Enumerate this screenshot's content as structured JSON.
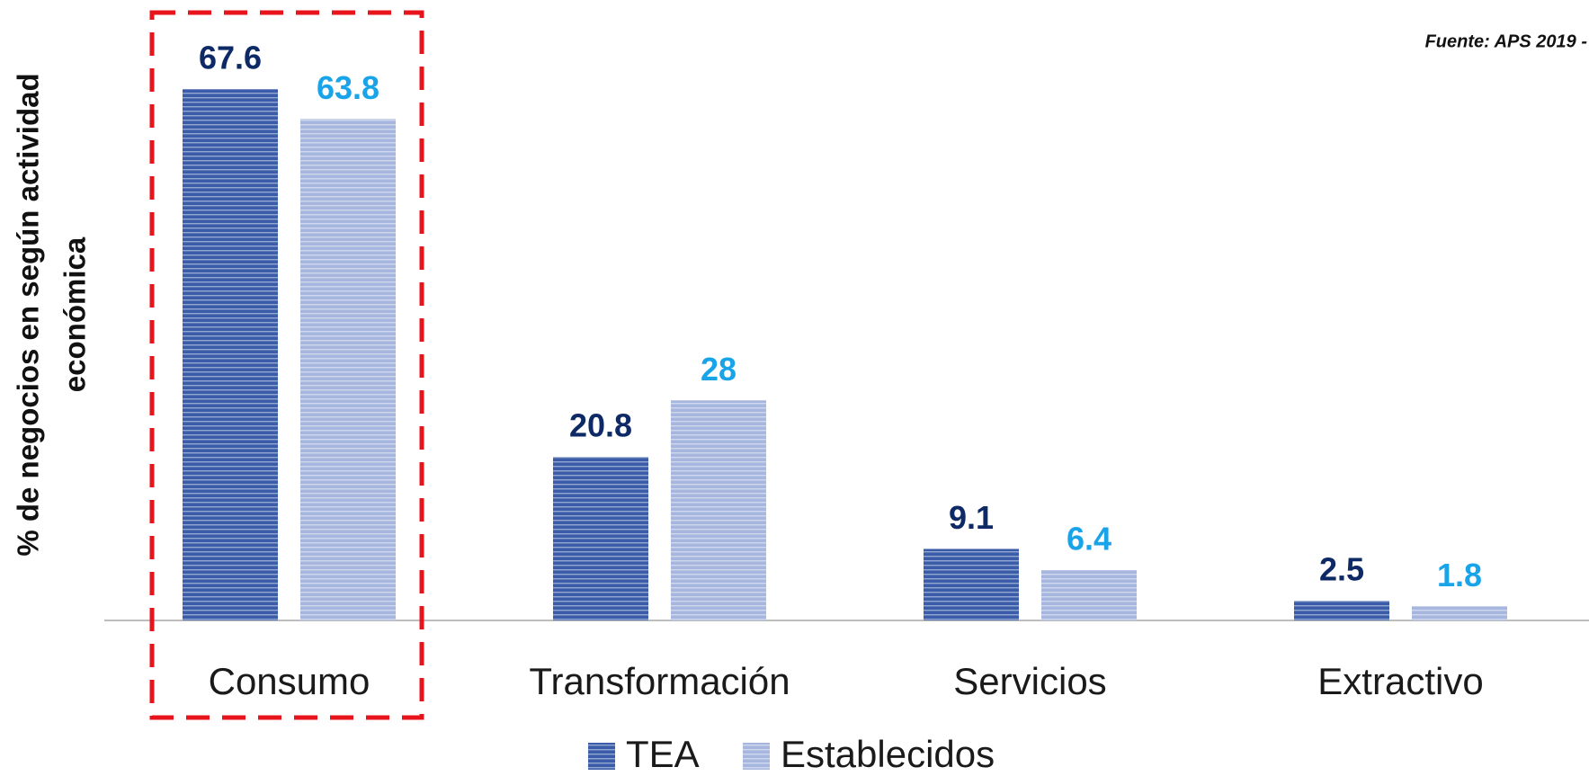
{
  "chart_data": {
    "type": "bar",
    "y_label": [
      "% de negocios en según actividad",
      "económica"
    ],
    "source": "Fuente: APS 2019 -",
    "categories": [
      "Consumo",
      "Transformación",
      "Servicios",
      "Extractivo"
    ],
    "series": [
      {
        "name": "TEA",
        "color": "#3b5ca9",
        "label_color": "#0e2a66",
        "values": [
          67.6,
          20.8,
          9.1,
          2.5
        ]
      },
      {
        "name": "Establecidos",
        "color": "#a7b6de",
        "label_color": "#19a4ea",
        "values": [
          63.8,
          28,
          6.4,
          1.8
        ]
      }
    ],
    "ylim": [
      0,
      70
    ],
    "grid": false
  }
}
